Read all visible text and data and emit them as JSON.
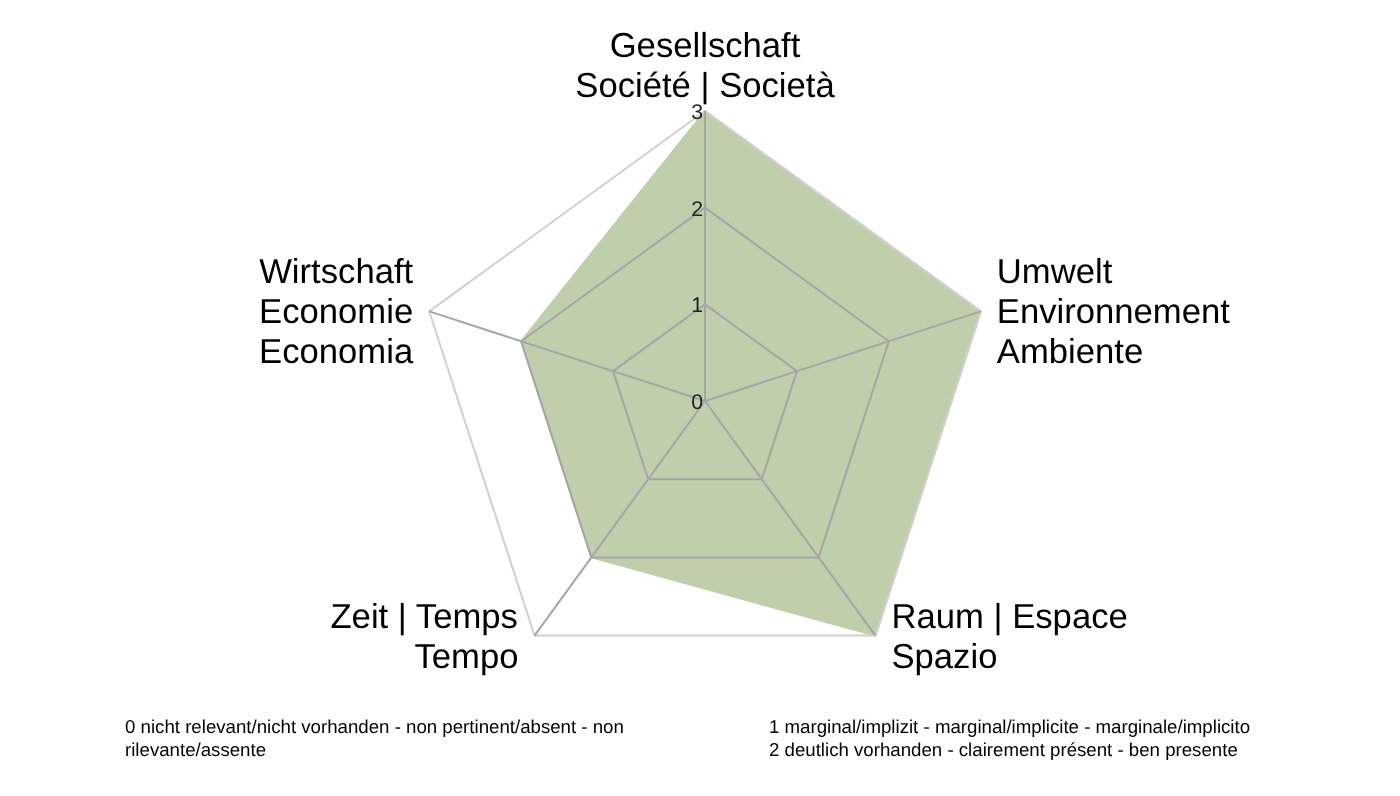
{
  "chart_data": {
    "type": "radar",
    "categories": [
      "Gesellschaft\nSociété | Società",
      "Umwelt\nEnvironnement\nAmbiente",
      "Raum | Espace\nSpazio",
      "Zeit | Temps\nTempo",
      "Wirtschaft\nEconomie\nEconomia"
    ],
    "series": [
      {
        "color": "#bfcfab",
        "values": [
          3,
          3,
          3,
          2,
          2
        ]
      }
    ],
    "ylim": [
      0,
      3
    ],
    "yticks": [
      0,
      1,
      2,
      3
    ],
    "grid": true,
    "annotations": [
      "0 nicht relevant/nicht  vorhanden  - non pertinent/absent - non\nrilevante/assente",
      "1 marginal/implizit - marginal/implicite - marginale/implicito\n2 deutlich vorhanden  - clairement présent - ben presente"
    ]
  }
}
